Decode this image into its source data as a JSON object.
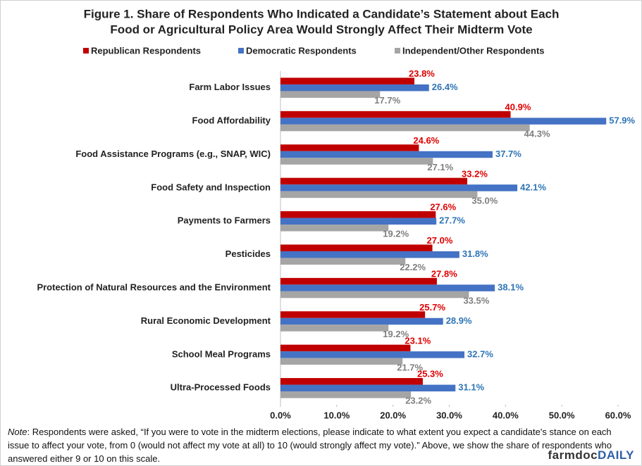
{
  "chart_data": {
    "type": "hbar",
    "title": [
      "Figure 1. Share of Respondents Who Indicated a Candidate’s Statement about Each",
      "Food or Agricultural Policy Area Would Strongly Affect Their Midterm Vote"
    ],
    "categories": [
      "Farm Labor Issues",
      "Food Affordability",
      "Food Assistance Programs (e.g., SNAP, WIC)",
      "Food Safety and Inspection",
      "Payments to Farmers",
      "Pesticides",
      "Protection of Natural Resources and the Environment",
      "Rural Economic Development",
      "School Meal Programs",
      "Ultra-Processed Foods"
    ],
    "series": [
      {
        "name": "Republican Respondents",
        "color": "#c00000",
        "label_color": "#e00000",
        "values": [
          23.8,
          40.9,
          24.6,
          33.2,
          27.6,
          27.0,
          27.8,
          25.7,
          23.1,
          25.3
        ],
        "value_labels": [
          "23.8%",
          "40.9%",
          "24.6%",
          "33.2%",
          "27.6%",
          "27.0%",
          "27.8%",
          "25.7%",
          "23.1%",
          "25.3%"
        ]
      },
      {
        "name": "Democratic Respondents",
        "color": "#4472c4",
        "label_color": "#2e75b6",
        "values": [
          26.4,
          57.9,
          37.7,
          42.1,
          27.7,
          31.8,
          38.1,
          28.9,
          32.7,
          31.1
        ],
        "value_labels": [
          "26.4%",
          "57.9%",
          "37.7%",
          "42.1%",
          "27.7%",
          "31.8%",
          "38.1%",
          "28.9%",
          "32.7%",
          "31.1%"
        ]
      },
      {
        "name": "Independent/Other Respondents",
        "color": "#a5a5a5",
        "label_color": "#7f7f7f",
        "values": [
          17.7,
          44.3,
          27.1,
          35.0,
          19.2,
          22.2,
          33.5,
          19.2,
          21.7,
          23.2
        ],
        "value_labels": [
          "17.7%",
          "44.3%",
          "27.1%",
          "35.0%",
          "19.2%",
          "22.2%",
          "33.5%",
          "19.2%",
          "21.7%",
          "23.2%"
        ]
      }
    ],
    "xlim": [
      0,
      60
    ],
    "xticks": [
      {
        "value": 0,
        "label": "0.0%"
      },
      {
        "value": 10,
        "label": "10.0%"
      },
      {
        "value": 20,
        "label": "20.0%"
      },
      {
        "value": 30,
        "label": "30.0%"
      },
      {
        "value": 40,
        "label": "40.0%"
      },
      {
        "value": 50,
        "label": "50.0%"
      },
      {
        "value": 60,
        "label": "60.0%"
      }
    ],
    "legend": "top",
    "note": {
      "label": "Note",
      "text": ": Respondents were asked, “If you were to vote in the midterm elections, please indicate to what extent you expect a candidate's stance on each issue to affect your vote, from 0 (would not affect my vote at all) to 10 (would strongly affect my vote).” Above, we show the share of respondents who answered either 9 or 10 on this scale."
    },
    "brand": [
      "farmdoc",
      "DAILY"
    ]
  }
}
